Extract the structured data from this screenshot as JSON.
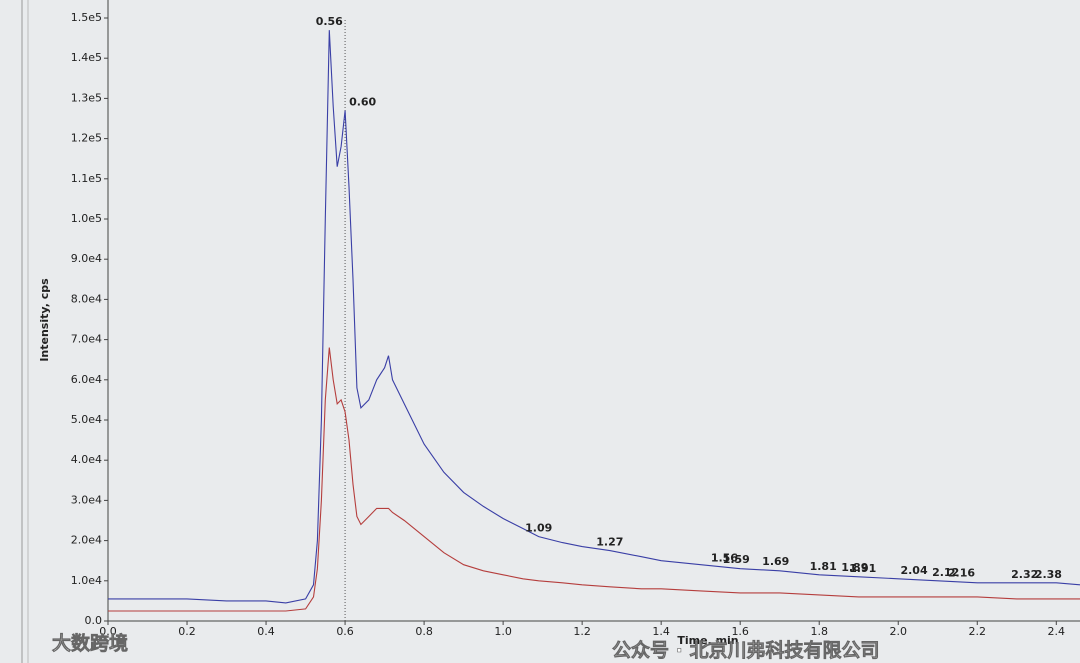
{
  "chart_data": {
    "type": "line",
    "x_label": "Time, min",
    "y_label": "Intensity, cps",
    "x": [
      0,
      0.1,
      0.2,
      0.3,
      0.4,
      0.45,
      0.5,
      0.52,
      0.53,
      0.54,
      0.55,
      0.56,
      0.57,
      0.58,
      0.59,
      0.6,
      0.61,
      0.62,
      0.63,
      0.64,
      0.66,
      0.68,
      0.7,
      0.71,
      0.72,
      0.75,
      0.8,
      0.85,
      0.9,
      0.95,
      1.0,
      1.05,
      1.09,
      1.15,
      1.2,
      1.27,
      1.35,
      1.4,
      1.5,
      1.6,
      1.7,
      1.8,
      1.9,
      2.0,
      2.1,
      2.2,
      2.3,
      2.4,
      2.46
    ],
    "series": [
      {
        "color": "#3a3fa6",
        "values": [
          5500,
          5500,
          5500,
          5000,
          5000,
          4500,
          5500,
          9000,
          20000,
          50000,
          100000,
          147000,
          128000,
          113000,
          118000,
          127000,
          108000,
          85000,
          58000,
          53000,
          55000,
          60000,
          63000,
          66000,
          60000,
          54000,
          44000,
          37000,
          32000,
          28500,
          25500,
          23000,
          21000,
          19500,
          18500,
          17500,
          16000,
          15000,
          14000,
          13000,
          12500,
          11500,
          11000,
          10500,
          10000,
          9500,
          9500,
          9500,
          9000
        ]
      },
      {
        "color": "#b53e3d",
        "values": [
          2500,
          2500,
          2500,
          2500,
          2500,
          2500,
          3000,
          6000,
          13000,
          30000,
          55000,
          68000,
          60000,
          54000,
          55000,
          52000,
          45000,
          34000,
          26000,
          24000,
          26000,
          28000,
          28000,
          28000,
          27000,
          25000,
          21000,
          17000,
          14000,
          12500,
          11500,
          10500,
          10000,
          9500,
          9000,
          8500,
          8000,
          8000,
          7500,
          7000,
          7000,
          6500,
          6000,
          6000,
          6000,
          6000,
          5500,
          5500,
          5500
        ]
      }
    ],
    "xlim": [
      0,
      2.46
    ],
    "ylim": [
      0,
      150000
    ],
    "xticks": [
      {
        "value": 0,
        "label": "0.0"
      },
      0.2,
      0.4,
      0.6,
      0.8,
      {
        "value": 1,
        "label": "1.0"
      },
      1.2,
      1.4,
      1.6,
      1.8,
      {
        "value": 2,
        "label": "2.0"
      },
      2.2,
      2.4
    ],
    "yticks": [
      {
        "value": 0,
        "label": "0.0"
      },
      {
        "value": 10000,
        "label": "1.0e4"
      },
      {
        "value": 20000,
        "label": "2.0e4"
      },
      {
        "value": 30000,
        "label": "3.0e4"
      },
      {
        "value": 40000,
        "label": "4.0e4"
      },
      {
        "value": 50000,
        "label": "5.0e4"
      },
      {
        "value": 60000,
        "label": "6.0e4"
      },
      {
        "value": 70000,
        "label": "7.0e4"
      },
      {
        "value": 80000,
        "label": "8.0e4"
      },
      {
        "value": 90000,
        "label": "9.0e4"
      },
      {
        "value": 100000,
        "label": "1.0e5"
      },
      {
        "value": 110000,
        "label": "1.1e5"
      },
      {
        "value": 120000,
        "label": "1.2e5"
      },
      {
        "value": 130000,
        "label": "1.3e5"
      },
      {
        "value": 140000,
        "label": "1.4e5"
      },
      {
        "value": 150000,
        "label": "1.5e5"
      }
    ],
    "cursor_x": 0.6,
    "peak_labels": [
      {
        "label": "0.56",
        "x": 0.56,
        "y": 147000
      },
      {
        "label": "0.60",
        "x": 0.6,
        "y": 127000
      },
      {
        "label": "1.09",
        "x": 1.09,
        "y": 21000
      },
      {
        "label": "1.27",
        "x": 1.27,
        "y": 17500
      },
      {
        "label": "1.56",
        "x": 1.56,
        "y": 13500
      },
      {
        "label": "1.59",
        "x": 1.59,
        "y": 13200
      },
      {
        "label": "1.69",
        "x": 1.69,
        "y": 12700
      },
      {
        "label": "1.81",
        "x": 1.81,
        "y": 11500
      },
      {
        "label": "1.89",
        "x": 1.89,
        "y": 11200
      },
      {
        "label": "1.91",
        "x": 1.91,
        "y": 11000
      },
      {
        "label": "2.04",
        "x": 2.04,
        "y": 10500
      },
      {
        "label": "2.12",
        "x": 2.12,
        "y": 10000
      },
      {
        "label": "2.16",
        "x": 2.16,
        "y": 9800
      },
      {
        "label": "2.32",
        "x": 2.32,
        "y": 9500
      },
      {
        "label": "2.38",
        "x": 2.38,
        "y": 9500
      }
    ],
    "watermarks": [
      "大数跨境",
      "公众号 · 北京川弗科技有限公司"
    ]
  }
}
